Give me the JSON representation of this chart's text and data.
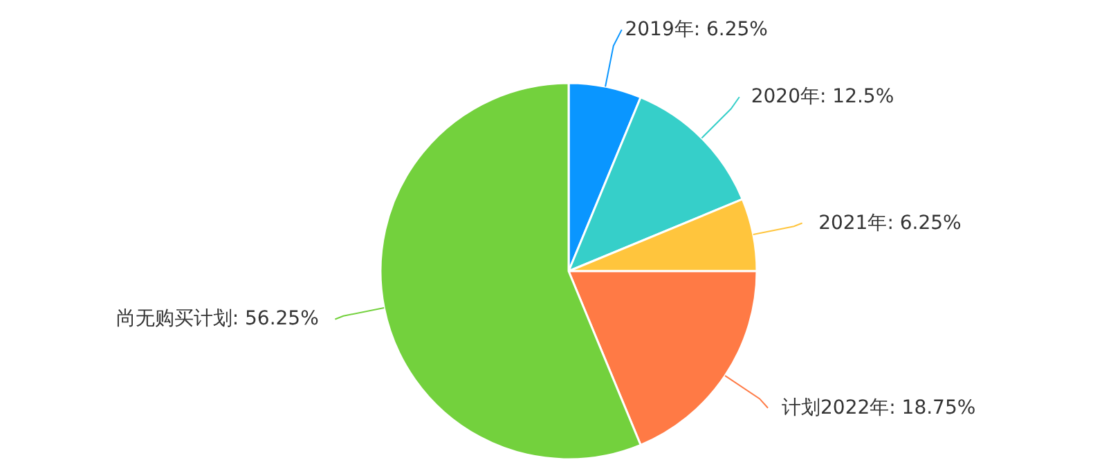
{
  "chart_data": {
    "type": "pie",
    "categories": [
      "2019年",
      "2020年",
      "2021年",
      "计划2022年",
      "尚无购买计划"
    ],
    "values": [
      6.25,
      12.5,
      6.25,
      18.75,
      56.25
    ],
    "colors": [
      "#0a96ff",
      "#36cfc9",
      "#ffc53d",
      "#ff7a45",
      "#73d13d"
    ],
    "value_labels": [
      "6.25%",
      "12.5%",
      "6.25%",
      "18.75%",
      "56.25%"
    ],
    "legend": false
  }
}
